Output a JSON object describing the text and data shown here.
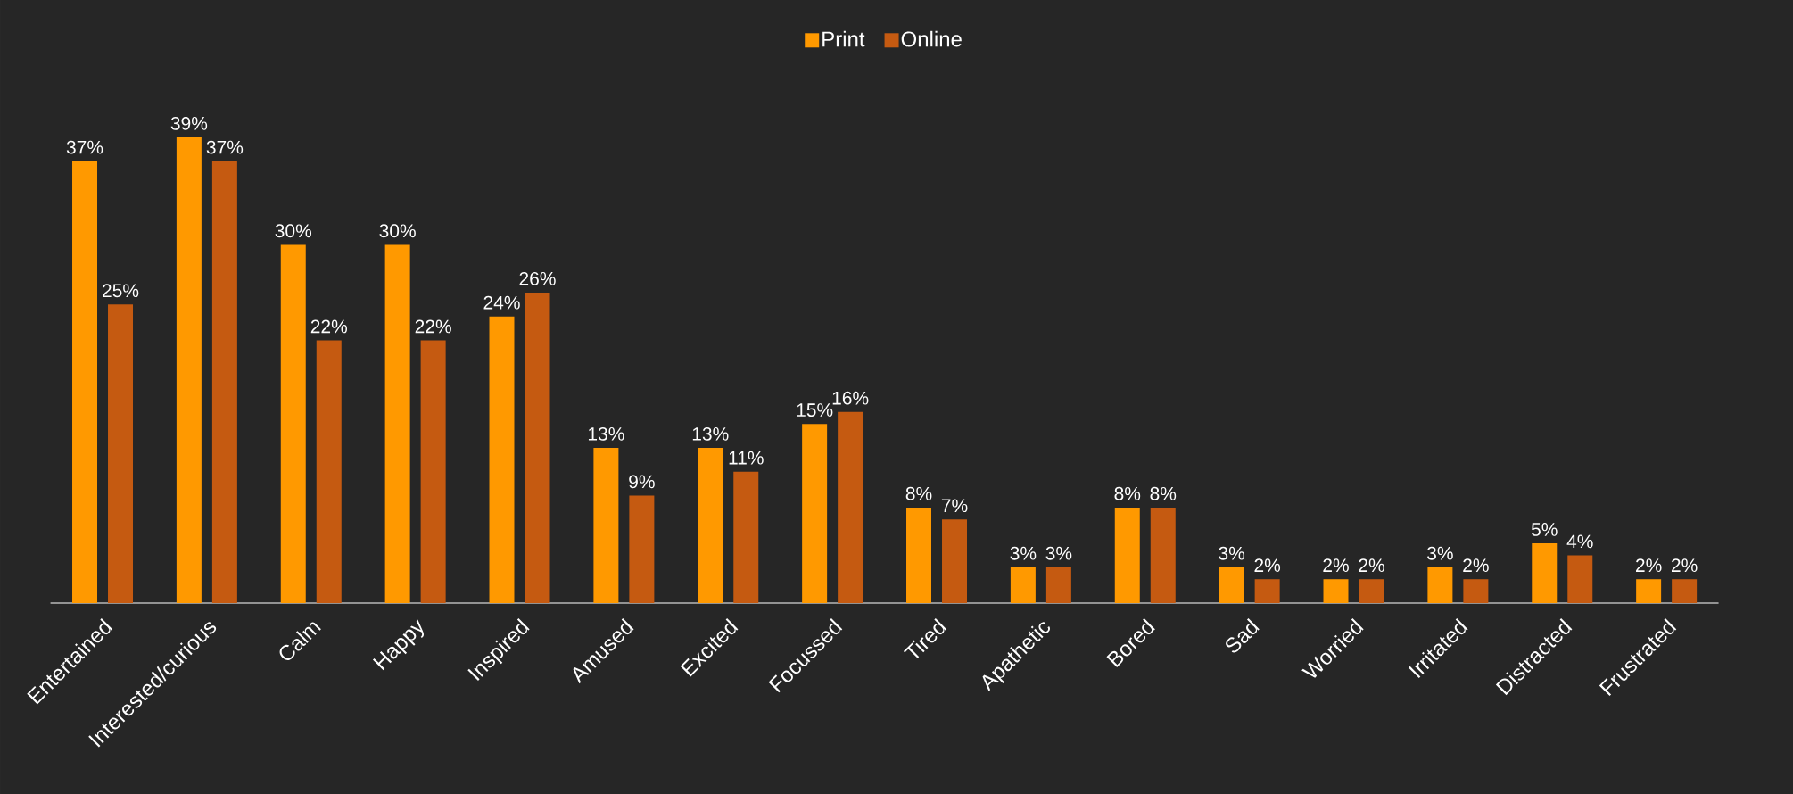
{
  "chart_data": {
    "type": "bar",
    "categories": [
      "Entertained",
      "Interested/curious",
      "Calm",
      "Happy",
      "Inspired",
      "Amused",
      "Excited",
      "Focussed",
      "Tired",
      "Apathetic",
      "Bored",
      "Sad",
      "Worried",
      "Irritated",
      "Distracted",
      "Frustrated"
    ],
    "series": [
      {
        "name": "Print",
        "color": "#ff9900",
        "values": [
          37,
          39,
          30,
          30,
          24,
          13,
          13,
          15,
          8,
          3,
          8,
          3,
          2,
          3,
          5,
          2
        ],
        "value_labels": [
          "37%",
          "39%",
          "30%",
          "30%",
          "24%",
          "13%",
          "13%",
          "15%",
          "8%",
          "3%",
          "8%",
          "3%",
          "2%",
          "3%",
          "5%",
          "2%"
        ]
      },
      {
        "name": "Online",
        "color": "#c55a11",
        "values": [
          25,
          37,
          22,
          22,
          26,
          9,
          11,
          16,
          7,
          3,
          8,
          2,
          2,
          2,
          4,
          2
        ],
        "value_labels": [
          "25%",
          "37%",
          "22%",
          "22%",
          "26%",
          "9%",
          "11%",
          "16%",
          "7%",
          "3%",
          "8%",
          "2%",
          "2%",
          "2%",
          "4%",
          "2%"
        ]
      }
    ],
    "legend": "top"
  }
}
